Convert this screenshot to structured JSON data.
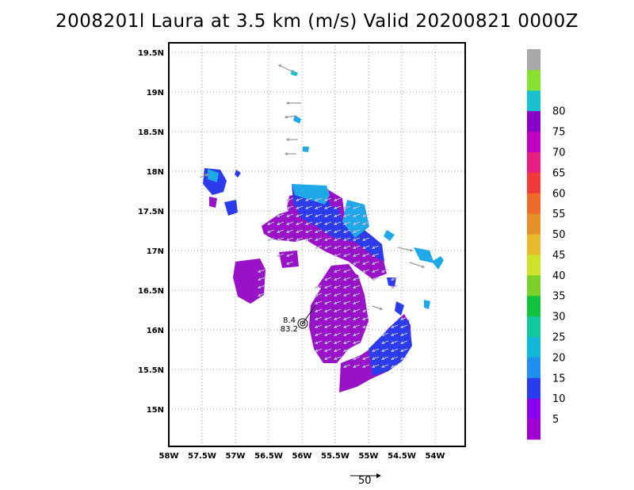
{
  "title": "2008201l Laura at 3.5 km (m/s) Valid 20200821 0000Z",
  "lat_labels": [
    "19.5N",
    "19N",
    "18.5N",
    "18N",
    "17.5N",
    "17N",
    "16.5N",
    "16N",
    "15.5N",
    "15N"
  ],
  "lon_labels": [
    "58W",
    "57.5W",
    "57W",
    "56.5W",
    "56W",
    "55.5W",
    "55W",
    "54.5W",
    "54W"
  ],
  "colorbar": {
    "colors": [
      "#a000d0",
      "#8800ee",
      "#2a3cf0",
      "#1f8ff0",
      "#11b8d8",
      "#12c8a0",
      "#11c23c",
      "#7bd12a",
      "#cfe22a",
      "#e6ba2a",
      "#e6902a",
      "#ee6a2a",
      "#f03a3a",
      "#e81e82",
      "#c000c0",
      "#8a00c8",
      "#18c0d0",
      "#88e030",
      "#a8a8a8"
    ],
    "tick_labels": [
      "5",
      "10",
      "15",
      "20",
      "25",
      "30",
      "35",
      "40",
      "45",
      "50",
      "55",
      "60",
      "65",
      "70",
      "75",
      "80"
    ]
  },
  "center_annotation": {
    "top": "8.4",
    "bottom": "83.2"
  },
  "vector_scale_label": "50"
}
